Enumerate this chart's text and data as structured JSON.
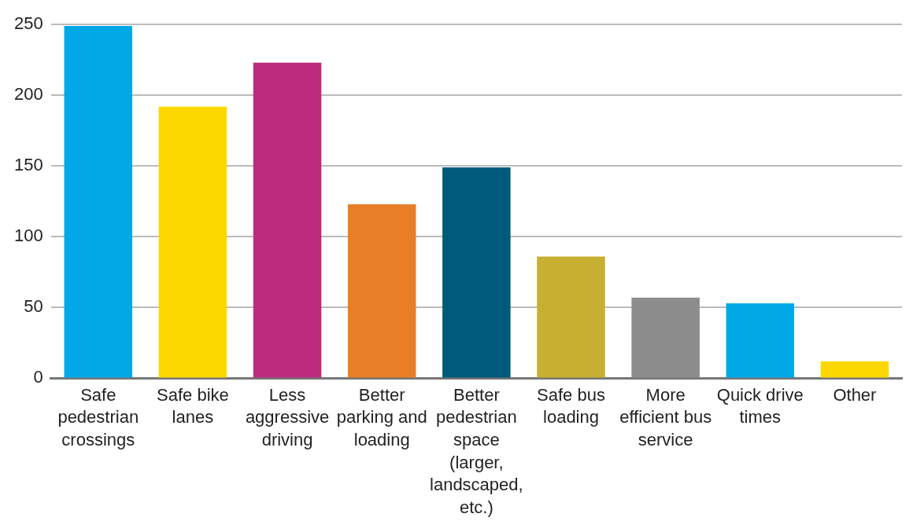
{
  "chart_data": {
    "type": "bar",
    "categories": [
      "Safe pedestrian crossings",
      "Safe bike lanes",
      "Less aggressive driving",
      "Better parking and loading",
      "Better pedestrian space (larger, landscaped, etc.)",
      "Safe bus loading",
      "More efficient bus service",
      "Quick drive times",
      "Other"
    ],
    "values": [
      249,
      192,
      223,
      123,
      149,
      86,
      57,
      53,
      12
    ],
    "colors": [
      "#00a9e6",
      "#fdd800",
      "#bc2b7c",
      "#e87e26",
      "#005b7a",
      "#c7af31",
      "#8c8c8c",
      "#00a9e6",
      "#fdd800"
    ],
    "ylim": [
      0,
      250
    ],
    "yticks": [
      0,
      50,
      100,
      150,
      200,
      250
    ],
    "grid": "y",
    "legend": false
  }
}
